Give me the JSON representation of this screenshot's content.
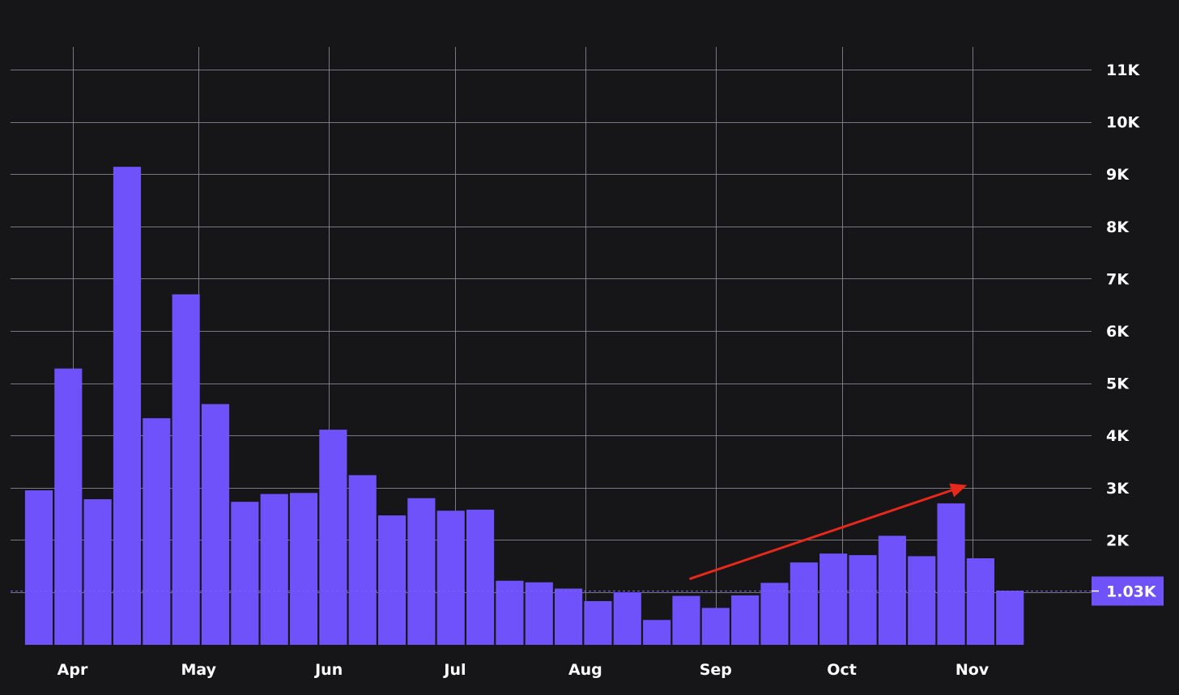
{
  "chart_data": {
    "type": "bar",
    "y_ticks": [
      "1K",
      "2K",
      "3K",
      "4K",
      "5K",
      "6K",
      "7K",
      "8K",
      "9K",
      "10K",
      "11K"
    ],
    "y_tick_values": [
      1000,
      2000,
      3000,
      4000,
      5000,
      6000,
      7000,
      8000,
      9000,
      10000,
      11000
    ],
    "ylim": [
      0,
      11400
    ],
    "x_ticks": [
      {
        "label": "Apr",
        "date": "2024-04-01"
      },
      {
        "label": "May",
        "date": "2024-05-01"
      },
      {
        "label": "Jun",
        "date": "2024-06-01"
      },
      {
        "label": "Jul",
        "date": "2024-07-01"
      },
      {
        "label": "Aug",
        "date": "2024-08-01"
      },
      {
        "label": "Sep",
        "date": "2024-09-01"
      },
      {
        "label": "Oct",
        "date": "2024-10-01"
      },
      {
        "label": "Nov",
        "date": "2024-11-01"
      }
    ],
    "bars": [
      {
        "date": "2024-03-24",
        "value": 2950
      },
      {
        "date": "2024-03-31",
        "value": 5280
      },
      {
        "date": "2024-04-07",
        "value": 2780
      },
      {
        "date": "2024-04-14",
        "value": 9140
      },
      {
        "date": "2024-04-21",
        "value": 4330
      },
      {
        "date": "2024-04-28",
        "value": 6700
      },
      {
        "date": "2024-05-05",
        "value": 4600
      },
      {
        "date": "2024-05-12",
        "value": 2730
      },
      {
        "date": "2024-05-19",
        "value": 2880
      },
      {
        "date": "2024-05-26",
        "value": 2900
      },
      {
        "date": "2024-06-02",
        "value": 4110
      },
      {
        "date": "2024-06-09",
        "value": 3240
      },
      {
        "date": "2024-06-16",
        "value": 2470
      },
      {
        "date": "2024-06-23",
        "value": 2800
      },
      {
        "date": "2024-06-30",
        "value": 2560
      },
      {
        "date": "2024-07-07",
        "value": 2580
      },
      {
        "date": "2024-07-14",
        "value": 1220
      },
      {
        "date": "2024-07-21",
        "value": 1190
      },
      {
        "date": "2024-07-28",
        "value": 1070
      },
      {
        "date": "2024-08-04",
        "value": 830
      },
      {
        "date": "2024-08-11",
        "value": 1000
      },
      {
        "date": "2024-08-18",
        "value": 470
      },
      {
        "date": "2024-08-25",
        "value": 930
      },
      {
        "date": "2024-09-01",
        "value": 700
      },
      {
        "date": "2024-09-08",
        "value": 940
      },
      {
        "date": "2024-09-15",
        "value": 1180
      },
      {
        "date": "2024-09-22",
        "value": 1570
      },
      {
        "date": "2024-09-29",
        "value": 1740
      },
      {
        "date": "2024-10-06",
        "value": 1710
      },
      {
        "date": "2024-10-13",
        "value": 2080
      },
      {
        "date": "2024-10-20",
        "value": 1690
      },
      {
        "date": "2024-10-27",
        "value": 2700
      },
      {
        "date": "2024-11-03",
        "value": 1650
      },
      {
        "date": "2024-11-10",
        "value": 1030
      }
    ],
    "last_value_label": "1.03K",
    "last_value": 1030,
    "grid": true,
    "legend": "none",
    "annotation": {
      "type": "arrow",
      "color": "#e8281b",
      "from": {
        "date": "2024-08-26",
        "value": 1260
      },
      "to": {
        "date": "2024-11-01",
        "value": 3020
      }
    },
    "colors": {
      "background": "#161619",
      "bar": "#7052fa",
      "grid": "#8a8a8f",
      "text": "#ffffff",
      "last_value_tag": "#7052fa",
      "last_value_line": "#7b63ff"
    }
  }
}
